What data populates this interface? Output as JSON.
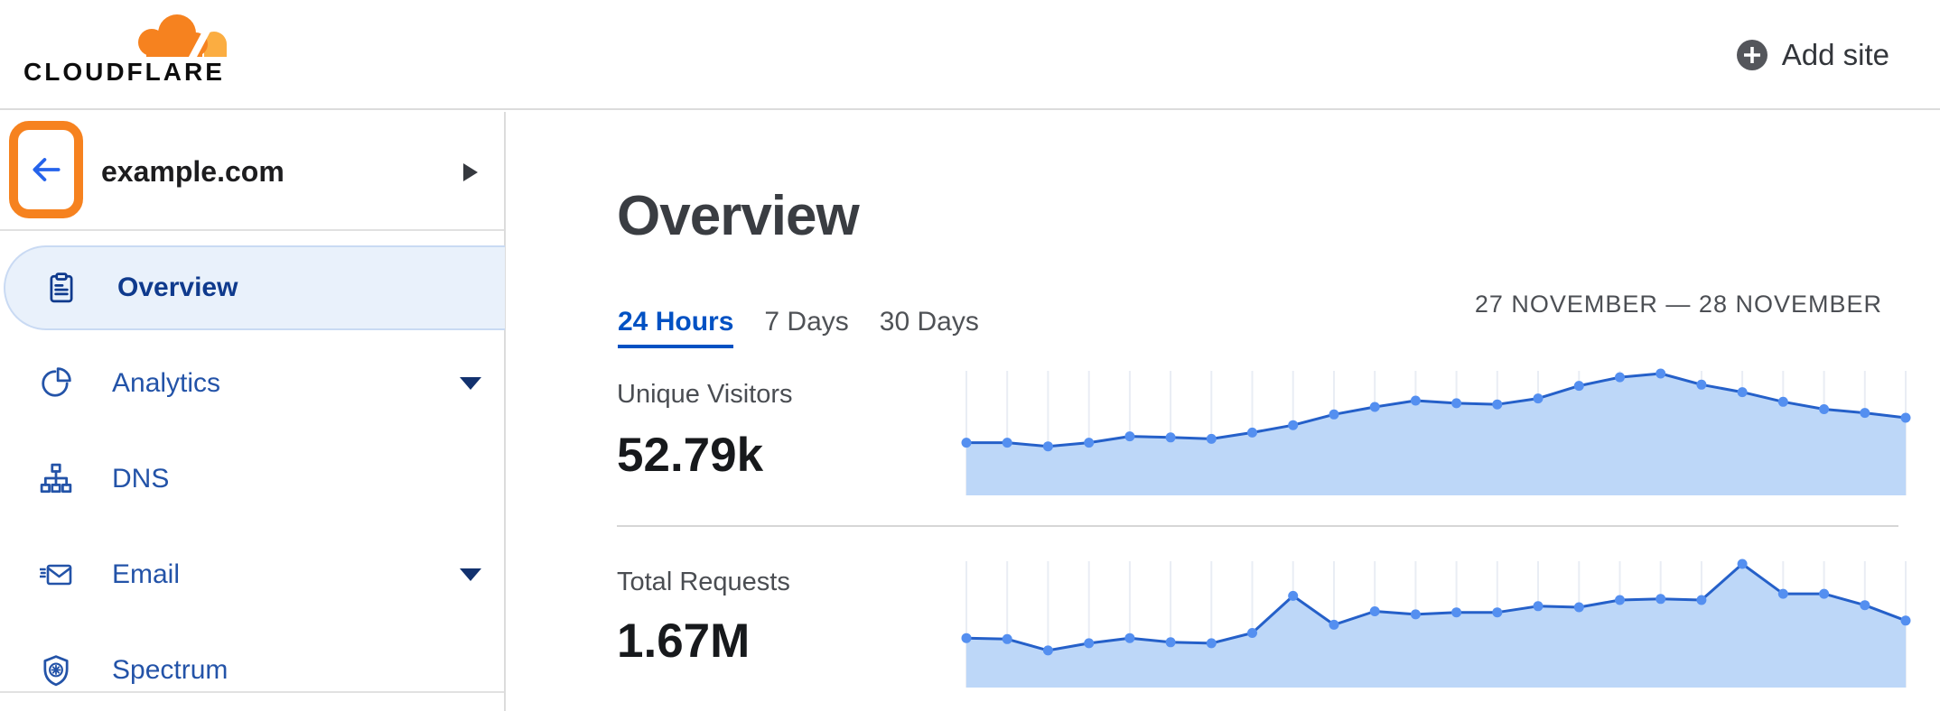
{
  "header": {
    "logo": {
      "brand": "CLOUDFLARE"
    },
    "add_site": {
      "label": "Add site",
      "icon": "plus-circle-icon"
    }
  },
  "sidebar": {
    "site": {
      "name": "example.com",
      "back_icon": "arrow-left-icon",
      "expand_icon": "caret-right-icon",
      "back_button_highlight_color": "#f6821f"
    },
    "items": [
      {
        "label": "Overview",
        "icon": "clipboard-icon",
        "selected": true,
        "has_submenu": false
      },
      {
        "label": "Analytics",
        "icon": "pie-chart-icon",
        "selected": false,
        "has_submenu": true
      },
      {
        "label": "DNS",
        "icon": "dns-tree-icon",
        "selected": false,
        "has_submenu": false
      },
      {
        "label": "Email",
        "icon": "email-icon",
        "selected": false,
        "has_submenu": true
      },
      {
        "label": "Spectrum",
        "icon": "shield-icon",
        "selected": false,
        "has_submenu": false
      }
    ]
  },
  "main": {
    "title": "Overview",
    "tabs": [
      {
        "label": "24 Hours",
        "active": true
      },
      {
        "label": "7 Days",
        "active": false
      },
      {
        "label": "30 Days",
        "active": false
      }
    ],
    "date_range": "27 NOVEMBER — 28 NOVEMBER",
    "metrics": [
      {
        "label": "Unique Visitors",
        "value": "52.79k"
      },
      {
        "label": "Total Requests",
        "value": "1.67M"
      }
    ]
  },
  "chart_data": [
    {
      "type": "area",
      "title": "Unique Visitors",
      "total_display": "52.79k",
      "period": "24 Hours",
      "date_range": "27 November — 28 November",
      "points": 24,
      "unit": "visitors per hour, thousands (estimated from plot; no y-axis shown)",
      "values": [
        1.42,
        1.42,
        1.32,
        1.42,
        1.59,
        1.56,
        1.52,
        1.69,
        1.89,
        2.18,
        2.38,
        2.55,
        2.48,
        2.45,
        2.61,
        2.95,
        3.18,
        3.28,
        2.98,
        2.78,
        2.52,
        2.32,
        2.22,
        2.09
      ],
      "ylim": [
        0,
        3.4
      ],
      "xlabel": "",
      "ylabel": "",
      "grid": "vertical gridline at every point",
      "legend": "none"
    },
    {
      "type": "area",
      "title": "Total Requests",
      "total_display": "1.67M",
      "period": "24 Hours",
      "date_range": "27 November — 28 November",
      "points": 24,
      "unit": "requests per hour, thousands (estimated from plot; no y-axis shown)",
      "values": [
        48,
        47,
        36,
        43,
        48,
        44,
        43,
        53,
        89,
        61,
        74,
        71,
        73,
        73,
        79,
        78,
        85,
        86,
        85,
        120,
        91,
        91,
        80,
        65
      ],
      "ylim": [
        0,
        125
      ],
      "xlabel": "",
      "ylabel": "",
      "grid": "vertical gridline at every point",
      "legend": "none"
    }
  ],
  "colors": {
    "accent_orange": "#f6821f",
    "logo_orange_light": "#fbad41",
    "link_blue": "#0051c3",
    "sidebar_item_blue": "#2353a8",
    "sidebar_selected_blue": "#0f3a8d",
    "sidebar_selected_bg": "#e9f1fb",
    "sidebar_selected_border": "#c9daf3",
    "chart_line": "#2560c9",
    "chart_dot": "#548ff0",
    "chart_fill": "#bdd7f8",
    "chart_grid": "#e9edf4"
  }
}
